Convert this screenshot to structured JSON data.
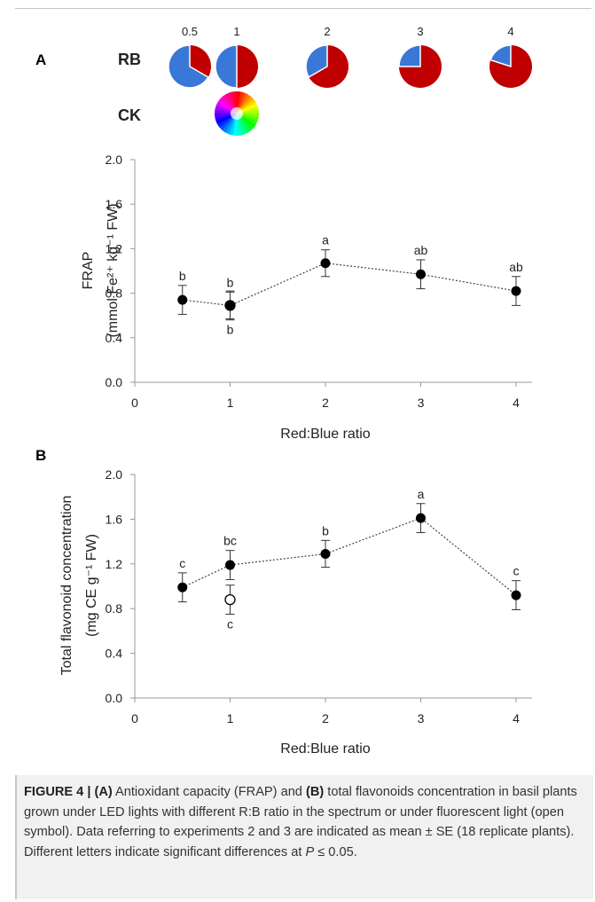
{
  "panel_a": {
    "letter": "A",
    "rb_label": "RB",
    "ck_label": "CK",
    "pie_ratios": [
      0.5,
      1,
      2,
      3,
      4
    ],
    "pie_labels": [
      "0.5",
      "1",
      "2",
      "3",
      "4"
    ],
    "colors": {
      "red": "#c00000",
      "blue": "#3a78d8"
    }
  },
  "panel_b": {
    "letter": "B"
  },
  "chart_data": [
    {
      "type": "scatter",
      "panel": "A",
      "xlabel": "Red:Blue ratio",
      "ylabel_line1": "FRAP",
      "ylabel_line2": "(mmol Fe²⁺ kg⁻¹ FW)",
      "xlim": [
        0,
        4
      ],
      "ylim": [
        0,
        2
      ],
      "xticks": [
        "0",
        "1",
        "2",
        "3",
        "4"
      ],
      "yticks": [
        "0.0",
        "0.4",
        "0.8",
        "1.2",
        "1.6",
        "2.0"
      ],
      "series": [
        {
          "style": "filled-dotted-line",
          "x": [
            0.5,
            1,
            2,
            3,
            4
          ],
          "y": [
            0.74,
            0.69,
            1.07,
            0.97,
            0.82
          ],
          "se": [
            0.13,
            0.12,
            0.12,
            0.13,
            0.13
          ],
          "letters": [
            "b",
            "b",
            "a",
            "ab",
            "ab"
          ]
        },
        {
          "style": "open",
          "x": [
            1
          ],
          "y": [
            0.69
          ],
          "se": [
            0.13
          ],
          "letters": [
            "b"
          ]
        }
      ]
    },
    {
      "type": "scatter",
      "panel": "B",
      "xlabel": "Red:Blue ratio",
      "ylabel_line1": "Total flavonoid concentration",
      "ylabel_line2": "(mg CE g⁻¹ FW)",
      "xlim": [
        0,
        4
      ],
      "ylim": [
        0,
        2
      ],
      "xticks": [
        "0",
        "1",
        "2",
        "3",
        "4"
      ],
      "yticks": [
        "0.0",
        "0.4",
        "0.8",
        "1.2",
        "1.6",
        "2.0"
      ],
      "series": [
        {
          "style": "filled-dotted-line",
          "x": [
            0.5,
            1,
            2,
            3,
            4
          ],
          "y": [
            0.99,
            1.19,
            1.29,
            1.61,
            0.92
          ],
          "se": [
            0.13,
            0.13,
            0.12,
            0.13,
            0.13
          ],
          "letters": [
            "c",
            "bc",
            "b",
            "a",
            "c"
          ]
        },
        {
          "style": "open",
          "x": [
            1
          ],
          "y": [
            0.88
          ],
          "se": [
            0.13
          ],
          "letters": [
            "c"
          ]
        }
      ]
    }
  ],
  "caption": {
    "label": "FIGURE 4 |",
    "a_tag": "(A)",
    "text1": " Antioxidant capacity (FRAP) and ",
    "b_tag": "(B)",
    "text2": " total flavonoids concentration in basil plants grown under LED lights with different R:B ratio in the spectrum or under fluorescent light (open symbol). Data referring to experiments 2 and 3 are indicated as mean ± SE (18 replicate plants). Different letters indicate significant differences at ",
    "p_symbol": "P",
    "text3": " ≤ 0.05."
  }
}
